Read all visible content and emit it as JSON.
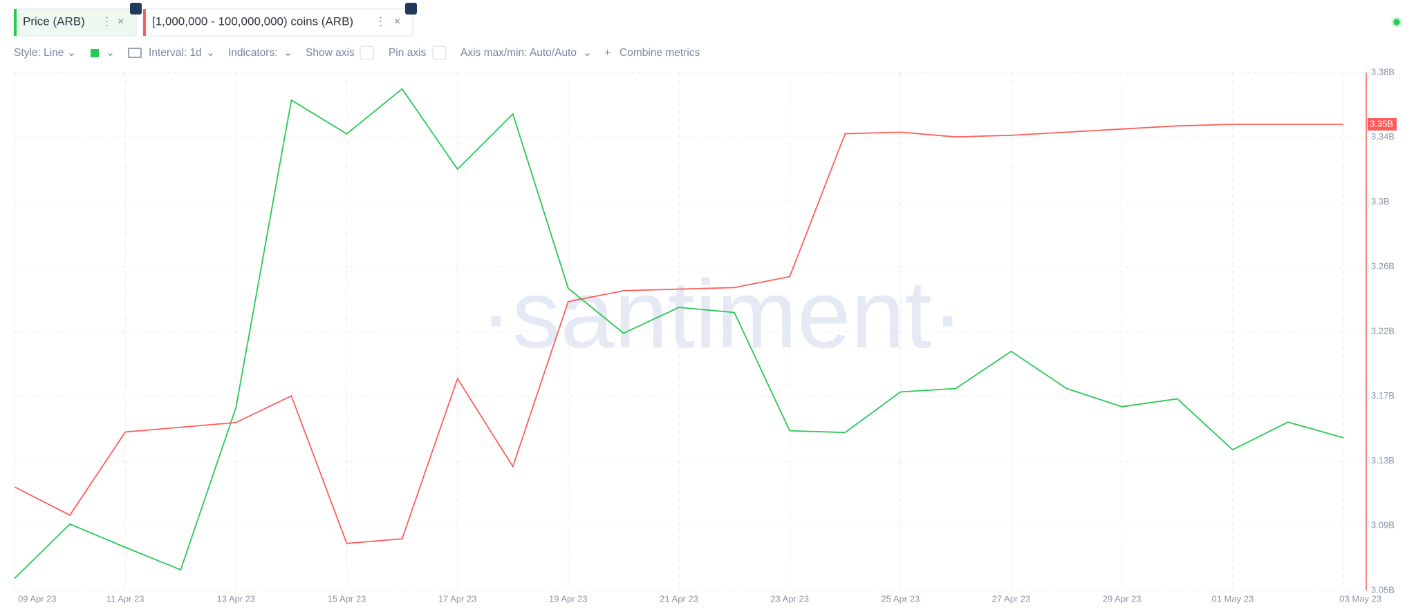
{
  "toolbar": {
    "style": "Style: Line",
    "interval": "Interval: 1d",
    "indicators": "Indicators:",
    "show_axis": "Show axis",
    "pin_axis": "Pin axis",
    "axis_minmax": "Axis max/min: Auto/Auto",
    "combine": "Combine metrics"
  },
  "chart_data": {
    "type": "line",
    "watermark": "·santiment·",
    "categories": [
      "09 Apr 23",
      null,
      "11 Apr 23",
      null,
      "13 Apr 23",
      null,
      "15 Apr 23",
      null,
      "17 Apr 23",
      null,
      "19 Apr 23",
      null,
      "21 Apr 23",
      null,
      "23 Apr 23",
      null,
      "25 Apr 23",
      null,
      "27 Apr 23",
      null,
      "29 Apr 23",
      null,
      "01 May 23",
      null,
      "03 May 23"
    ],
    "series": [
      {
        "name": "Price (ARB)",
        "color": "#26c953",
        "axis": "y",
        "values": [
          1.064,
          1.127,
          1.1,
          1.074,
          1.262,
          1.618,
          1.579,
          1.631,
          1.538,
          1.602,
          1.4,
          1.348,
          1.378,
          1.372,
          1.235,
          1.233,
          1.28,
          1.284,
          1.327,
          1.284,
          1.263,
          1.272,
          1.213,
          1.245,
          1.227
        ]
      },
      {
        "name": "[1,000,000 - 100,000,000) coins (ARB)",
        "color": "#ff5b5b",
        "axis": "y2",
        "values": [
          3.116,
          3.098,
          3.151,
          3.154,
          3.157,
          3.174,
          3.08,
          3.083,
          3.185,
          3.129,
          3.234,
          3.241,
          3.242,
          3.243,
          3.25,
          3.341,
          3.342,
          3.339,
          3.34,
          3.342,
          3.344,
          3.346,
          3.347,
          3.347,
          3.347
        ],
        "value_labels": [
          null,
          null,
          null,
          null,
          null,
          null,
          null,
          null,
          null,
          null,
          null,
          null,
          null,
          null,
          null,
          null,
          null,
          null,
          null,
          null,
          null,
          null,
          null,
          null,
          "3.35B"
        ]
      }
    ],
    "ylim": [
      1.05,
      1.65
    ],
    "y2lim": [
      3.05,
      3.38
    ],
    "y2ticks": [
      {
        "value": 3.05,
        "label": "3.05B"
      },
      {
        "value": 3.09125,
        "label": "3.09B"
      },
      {
        "value": 3.1325,
        "label": "3.13B"
      },
      {
        "value": 3.17375,
        "label": "3.17B"
      },
      {
        "value": 3.215,
        "label": "3.22B"
      },
      {
        "value": 3.25625,
        "label": "3.26B"
      },
      {
        "value": 3.2975,
        "label": "3.3B"
      },
      {
        "value": 3.33875,
        "label": "3.34B"
      },
      {
        "value": 3.38,
        "label": "3.38B"
      }
    ],
    "grid": true
  }
}
